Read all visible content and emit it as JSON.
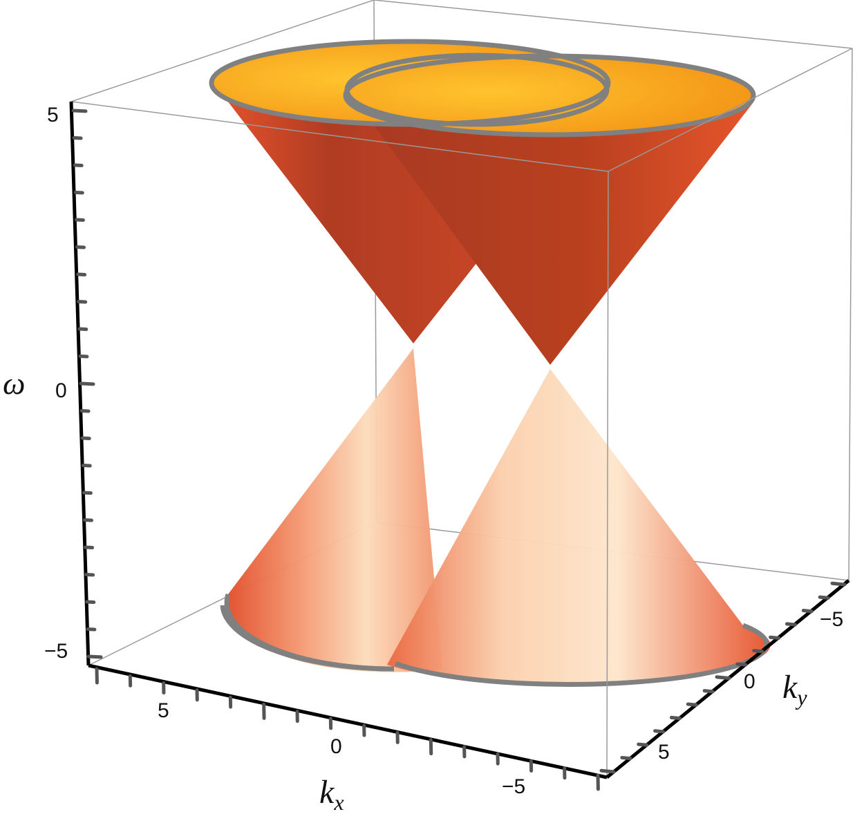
{
  "chart_data": {
    "type": "surface3d",
    "title": "",
    "axes": {
      "x": {
        "label": "k",
        "subscript": "x",
        "ticks": [
          5,
          0,
          -5
        ],
        "tick_labels": [
          "5",
          "0",
          "−5"
        ],
        "range": [
          -7.5,
          7.5
        ]
      },
      "y": {
        "label": "k",
        "subscript": "y",
        "ticks": [
          -5,
          0,
          5
        ],
        "tick_labels": [
          "−5",
          "0",
          "5"
        ],
        "range": [
          -7.5,
          7.5
        ]
      },
      "z": {
        "label": "ω",
        "ticks": [
          5,
          0,
          -5
        ],
        "tick_labels": [
          "5",
          "0",
          "−5"
        ],
        "range": [
          -5,
          5
        ]
      }
    },
    "series": [
      {
        "surface": "upper-cone",
        "apex_omega": 0.4,
        "rim_omega": 5.2
      },
      {
        "surface": "upper-cone",
        "apex_omega": 0.4,
        "rim_omega": 5.2
      },
      {
        "surface": "lower-cone",
        "apex_omega": 0.4,
        "rim_omega": -4.8
      },
      {
        "surface": "lower-cone",
        "apex_omega": 0.4,
        "rim_omega": -4.8
      }
    ],
    "box": true,
    "grid": false,
    "legend": "none",
    "colors": {
      "upper_outer": "#c8482a",
      "upper_inner": "#f5a21f",
      "lower_edge": "#e0502c",
      "lower_face": "#fde3c4",
      "rim": "#808080"
    }
  }
}
